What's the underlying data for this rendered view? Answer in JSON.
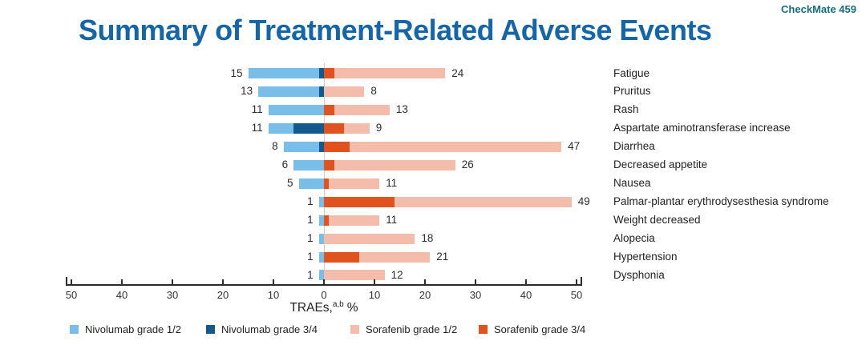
{
  "slide": {
    "badge": "CheckMate 459",
    "title": "Summary of Treatment-Related Adverse Events"
  },
  "chart_data": {
    "type": "bar",
    "variant": "diverging-stacked-horizontal",
    "title": "Summary of Treatment-Related Adverse Events",
    "xlabel": {
      "prefix": "TRAEs,",
      "superscript": "a,b",
      "suffix": "%"
    },
    "axis_ticks": [
      "50",
      "40",
      "30",
      "20",
      "10",
      "0",
      "10",
      "20",
      "30",
      "40",
      "50"
    ],
    "xlim_each_side": [
      0,
      50
    ],
    "grid": false,
    "legend_position": "bottom",
    "categories": [
      "Fatigue",
      "Pruritus",
      "Rash",
      "Aspartate aminotransferase increase",
      "Diarrhea",
      "Decreased appetite",
      "Nausea",
      "Palmar-plantar erythrodysesthesia syndrome",
      "Weight decreased",
      "Alopecia",
      "Hypertension",
      "Dysphonia"
    ],
    "left_totals": [
      15,
      13,
      11,
      11,
      8,
      6,
      5,
      1,
      1,
      1,
      1,
      1
    ],
    "right_totals": [
      24,
      8,
      13,
      9,
      47,
      26,
      11,
      49,
      11,
      18,
      21,
      12
    ],
    "series": [
      {
        "name": "Nivolumab grade 1/2",
        "side": "left",
        "color": "#79BEE9",
        "values": [
          14,
          12,
          11,
          5,
          7,
          6,
          5,
          1,
          1,
          1,
          1,
          1
        ]
      },
      {
        "name": "Nivolumab grade 3/4",
        "side": "left",
        "color": "#12598E",
        "values": [
          1,
          1,
          0,
          6,
          1,
          0,
          0,
          0,
          0,
          0,
          0,
          0
        ]
      },
      {
        "name": "Sorafenib grade 3/4",
        "side": "right",
        "color": "#E0531F",
        "values": [
          2,
          0,
          2,
          4,
          5,
          2,
          1,
          14,
          1,
          0,
          7,
          0
        ]
      },
      {
        "name": "Sorafenib grade 1/2",
        "side": "right",
        "color": "#F3BCAB",
        "values": [
          22,
          8,
          11,
          5,
          42,
          24,
          10,
          35,
          10,
          18,
          14,
          12
        ]
      }
    ]
  },
  "legend": [
    {
      "label": "Nivolumab grade 1/2",
      "color": "#79BEE9"
    },
    {
      "label": "Nivolumab grade 3/4",
      "color": "#12598E"
    },
    {
      "label": "Sorafenib grade 1/2",
      "color": "#F3BCAB"
    },
    {
      "label": "Sorafenib grade 3/4",
      "color": "#E0531F"
    }
  ],
  "colors": {
    "title": "#1566A8",
    "badge": "#156D7E",
    "axis": "#2B2B2B",
    "center_line": "#CCCCCC",
    "value_text": "#2D2D2D"
  }
}
